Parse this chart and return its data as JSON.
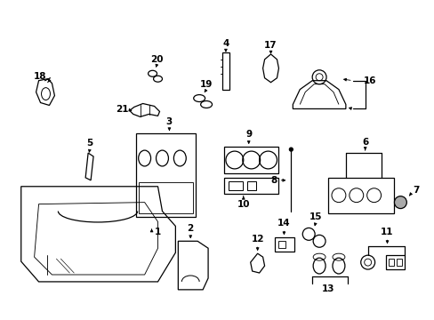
{
  "bg_color": "#ffffff",
  "line_color": "#000000",
  "lw": 0.9
}
